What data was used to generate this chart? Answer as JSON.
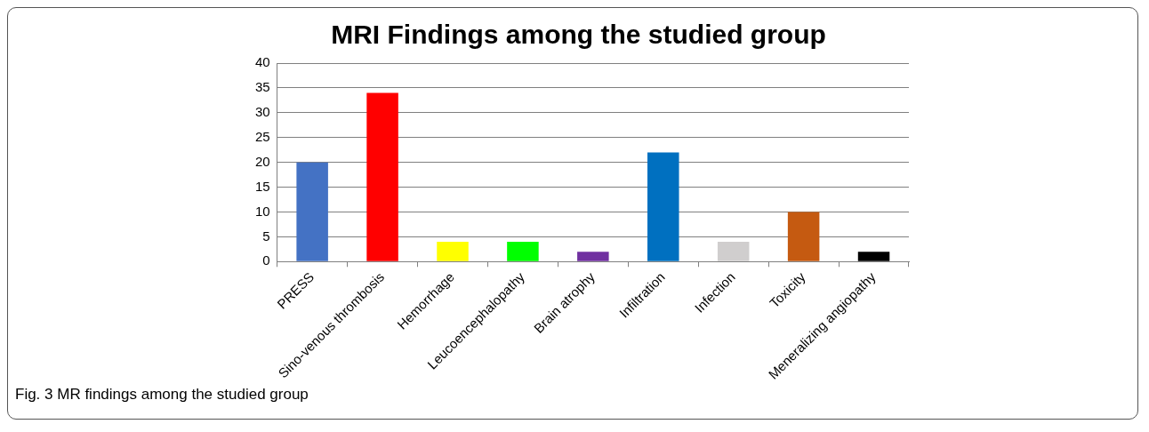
{
  "chart_data": {
    "type": "bar",
    "title": "MRI Findings among the studied group",
    "categories": [
      "PRESS",
      "Sino-venous thrombosis",
      "Hemorrhage",
      "Leucoencephalopathy",
      "Brain atrophy",
      "Infiltration",
      "Infection",
      "Toxicity",
      "Meneralizing angiopathy"
    ],
    "values": [
      20,
      34,
      4,
      4,
      2,
      22,
      4,
      10,
      2
    ],
    "colors": [
      "#4472c4",
      "#ff0000",
      "#ffff00",
      "#00ff00",
      "#7030a0",
      "#0070c0",
      "#d0cece",
      "#c55a11",
      "#000000"
    ],
    "ylim": [
      0,
      40
    ],
    "yticks": [
      0,
      5,
      10,
      15,
      20,
      25,
      30,
      35,
      40
    ],
    "grid": "y",
    "annotations": [
      "Fig. 3 MR findings among the studied group"
    ]
  }
}
